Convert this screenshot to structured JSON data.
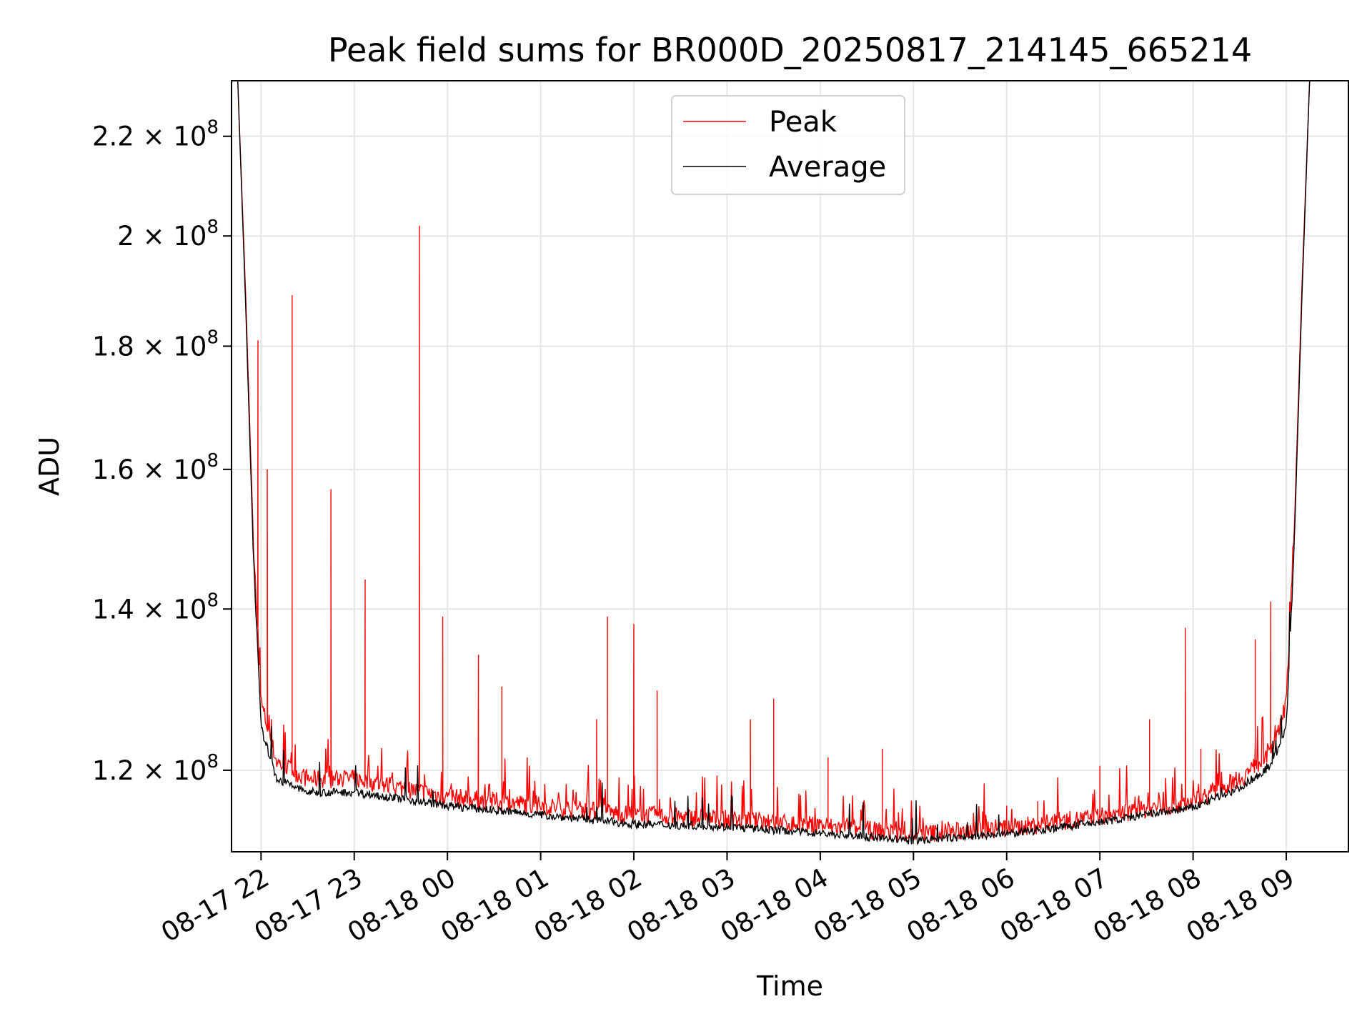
{
  "chart_data": {
    "type": "line",
    "title": "Peak field sums for BR000D_20250817_214145_665214",
    "xlabel": "Time",
    "ylabel": "ADU",
    "yscale": "log",
    "grid": true,
    "legend_position": "top-center",
    "x_ticks": [
      "08-17 22",
      "08-17 23",
      "08-18 00",
      "08-18 01",
      "08-18 02",
      "08-18 03",
      "08-18 04",
      "08-18 05",
      "08-18 06",
      "08-18 07",
      "08-18 08",
      "08-18 09"
    ],
    "y_ticks": [
      {
        "mantissa": "1.2",
        "exponent": "8",
        "value": 120000000
      },
      {
        "mantissa": "1.4",
        "exponent": "8",
        "value": 140000000
      },
      {
        "mantissa": "1.6",
        "exponent": "8",
        "value": 160000000
      },
      {
        "mantissa": "1.8",
        "exponent": "8",
        "value": 180000000
      },
      {
        "mantissa": "2",
        "exponent": "8",
        "value": 200000000
      },
      {
        "mantissa": "2.2",
        "exponent": "8",
        "value": 220000000
      }
    ],
    "xlim": [
      "2025-08-17 21:41",
      "2025-08-18 09:40"
    ],
    "ylim": [
      111000000,
      232000000
    ],
    "series": [
      {
        "name": "Peak",
        "color": "#ff0000",
        "baseline": [
          [
            "2025-08-17 21:45",
            232000000
          ],
          [
            "2025-08-17 21:50",
            190000000
          ],
          [
            "2025-08-17 21:55",
            150000000
          ],
          [
            "2025-08-17 22:00",
            128000000
          ],
          [
            "2025-08-17 22:10",
            121000000
          ],
          [
            "2025-08-17 22:30",
            119000000
          ],
          [
            "2025-08-17 23:00",
            119000000
          ],
          [
            "2025-08-17 23:30",
            118000000
          ],
          [
            "2025-08-18 00:00",
            117000000
          ],
          [
            "2025-08-18 01:00",
            116000000
          ],
          [
            "2025-08-18 02:00",
            115000000
          ],
          [
            "2025-08-18 03:00",
            114500000
          ],
          [
            "2025-08-18 04:00",
            113800000
          ],
          [
            "2025-08-18 05:00",
            112900000
          ],
          [
            "2025-08-18 06:00",
            113500000
          ],
          [
            "2025-08-18 07:00",
            114800000
          ],
          [
            "2025-08-18 07:30",
            115600000
          ],
          [
            "2025-08-18 08:00",
            116500000
          ],
          [
            "2025-08-18 08:30",
            119000000
          ],
          [
            "2025-08-18 08:50",
            122000000
          ],
          [
            "2025-08-18 09:00",
            128000000
          ],
          [
            "2025-08-18 09:05",
            150000000
          ],
          [
            "2025-08-18 09:10",
            190000000
          ],
          [
            "2025-08-18 09:15",
            232000000
          ]
        ],
        "spikes": [
          [
            "2025-08-17 21:58",
            181000000
          ],
          [
            "2025-08-17 22:04",
            160000000
          ],
          [
            "2025-08-17 22:20",
            189000000
          ],
          [
            "2025-08-17 22:45",
            157000000
          ],
          [
            "2025-08-17 23:07",
            144000000
          ],
          [
            "2025-08-17 23:42",
            202000000
          ],
          [
            "2025-08-17 23:57",
            139000000
          ],
          [
            "2025-08-18 00:20",
            134000000
          ],
          [
            "2025-08-18 00:35",
            130000000
          ],
          [
            "2025-08-18 01:36",
            126000000
          ],
          [
            "2025-08-18 01:43",
            139000000
          ],
          [
            "2025-08-18 02:00",
            138000000
          ],
          [
            "2025-08-18 02:15",
            129500000
          ],
          [
            "2025-08-18 03:15",
            126000000
          ],
          [
            "2025-08-18 03:30",
            128500000
          ],
          [
            "2025-08-18 04:05",
            121500000
          ],
          [
            "2025-08-18 04:40",
            122500000
          ],
          [
            "2025-08-18 06:00",
            116000000
          ],
          [
            "2025-08-18 06:20",
            116500000
          ],
          [
            "2025-08-18 07:00",
            120500000
          ],
          [
            "2025-08-18 07:32",
            126000000
          ],
          [
            "2025-08-18 07:55",
            137500000
          ],
          [
            "2025-08-18 08:05",
            122500000
          ],
          [
            "2025-08-18 08:40",
            136000000
          ],
          [
            "2025-08-18 08:50",
            141000000
          ]
        ]
      },
      {
        "name": "Average",
        "color": "#000000",
        "baseline": [
          [
            "2025-08-17 21:45",
            232000000
          ],
          [
            "2025-08-17 21:50",
            188000000
          ],
          [
            "2025-08-17 21:55",
            148000000
          ],
          [
            "2025-08-17 22:00",
            125000000
          ],
          [
            "2025-08-17 22:10",
            119000000
          ],
          [
            "2025-08-17 22:30",
            117500000
          ],
          [
            "2025-08-17 23:00",
            117500000
          ],
          [
            "2025-08-17 23:30",
            116800000
          ],
          [
            "2025-08-18 00:00",
            116000000
          ],
          [
            "2025-08-18 01:00",
            115000000
          ],
          [
            "2025-08-18 02:00",
            114000000
          ],
          [
            "2025-08-18 03:00",
            113700000
          ],
          [
            "2025-08-18 04:00",
            113000000
          ],
          [
            "2025-08-18 05:00",
            112200000
          ],
          [
            "2025-08-18 06:00",
            112900000
          ],
          [
            "2025-08-18 07:00",
            114200000
          ],
          [
            "2025-08-18 07:30",
            115000000
          ],
          [
            "2025-08-18 08:00",
            115800000
          ],
          [
            "2025-08-18 08:30",
            118000000
          ],
          [
            "2025-08-18 08:50",
            120500000
          ],
          [
            "2025-08-18 09:00",
            125000000
          ],
          [
            "2025-08-18 09:05",
            148000000
          ],
          [
            "2025-08-18 09:10",
            188000000
          ],
          [
            "2025-08-18 09:15",
            232000000
          ]
        ]
      }
    ]
  }
}
